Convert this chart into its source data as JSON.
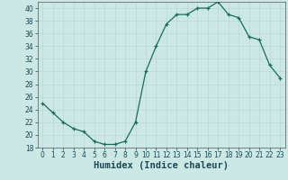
{
  "x": [
    0,
    1,
    2,
    3,
    4,
    5,
    6,
    7,
    8,
    9,
    10,
    11,
    12,
    13,
    14,
    15,
    16,
    17,
    18,
    19,
    20,
    21,
    22,
    23
  ],
  "y": [
    25,
    23.5,
    22,
    21,
    20.5,
    19,
    18.5,
    18.5,
    19,
    22,
    30,
    34,
    37.5,
    39,
    39,
    40,
    40,
    41,
    39,
    38.5,
    35.5,
    35,
    31,
    29
  ],
  "line_color": "#1a6b5a",
  "marker_color": "#1a6b5a",
  "bg_color": "#cce8e4",
  "grid_color": "#b8d8d4",
  "xlabel": "Humidex (Indice chaleur)",
  "ylim": [
    18,
    41
  ],
  "xlim": [
    -0.5,
    23.5
  ],
  "yticks": [
    18,
    20,
    22,
    24,
    26,
    28,
    30,
    32,
    34,
    36,
    38,
    40
  ],
  "xticks": [
    0,
    1,
    2,
    3,
    4,
    5,
    6,
    7,
    8,
    9,
    10,
    11,
    12,
    13,
    14,
    15,
    16,
    17,
    18,
    19,
    20,
    21,
    22,
    23
  ],
  "tick_label_fontsize": 5.5,
  "xlabel_fontsize": 7.5,
  "marker_size": 3,
  "line_width": 0.9
}
